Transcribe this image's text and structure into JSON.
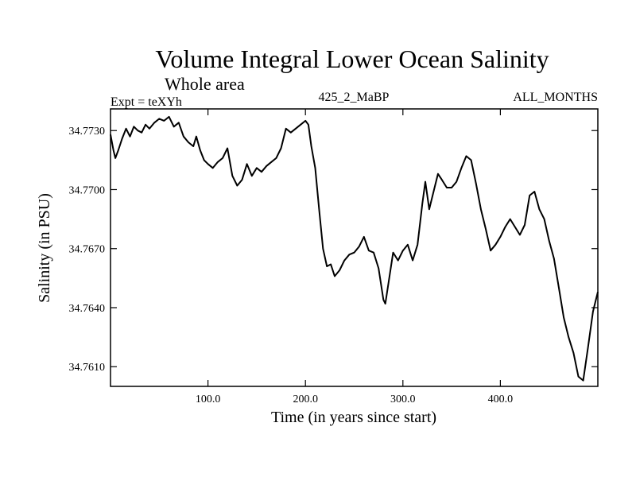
{
  "chart_data": {
    "type": "line",
    "title": "Volume Integral Lower Ocean Salinity",
    "subtitle": "Whole area",
    "annotations": {
      "left": "Expt = teXYh",
      "center": "425_2_MaBP",
      "right": "ALL_MONTHS"
    },
    "xlabel": "Time (in years since start)",
    "ylabel": "Salinity (in PSU)",
    "xlim": [
      0,
      500
    ],
    "ylim": [
      34.76,
      34.7741
    ],
    "x_ticks": [
      {
        "value": 100,
        "label": "100.0"
      },
      {
        "value": 200,
        "label": "200.0"
      },
      {
        "value": 300,
        "label": "300.0"
      },
      {
        "value": 400,
        "label": "400.0"
      }
    ],
    "y_ticks": [
      {
        "value": 34.761,
        "label": "34.7610"
      },
      {
        "value": 34.764,
        "label": "34.7640"
      },
      {
        "value": 34.767,
        "label": "34.7670"
      },
      {
        "value": 34.77,
        "label": "34.7700"
      },
      {
        "value": 34.773,
        "label": "34.7730"
      }
    ],
    "grid": false,
    "series": [
      {
        "color": "#000000",
        "x": [
          0,
          3,
          5,
          8,
          12,
          16,
          20,
          24,
          28,
          32,
          36,
          40,
          45,
          50,
          55,
          60,
          65,
          70,
          75,
          80,
          85,
          88,
          92,
          96,
          100,
          105,
          110,
          115,
          120,
          125,
          130,
          135,
          140,
          145,
          150,
          155,
          160,
          165,
          170,
          175,
          180,
          185,
          190,
          195,
          200,
          203,
          206,
          210,
          214,
          218,
          222,
          226,
          230,
          235,
          240,
          245,
          250,
          255,
          260,
          265,
          270,
          275,
          280,
          282,
          286,
          290,
          295,
          300,
          305,
          310,
          315,
          320,
          323,
          327,
          332,
          336,
          340,
          345,
          350,
          355,
          360,
          365,
          370,
          375,
          380,
          385,
          390,
          395,
          400,
          405,
          410,
          415,
          420,
          425,
          430,
          435,
          440,
          445,
          450,
          455,
          460,
          465,
          470,
          475,
          480,
          485,
          490,
          495,
          500
        ],
        "y": [
          34.7728,
          34.772,
          34.7716,
          34.772,
          34.7726,
          34.7731,
          34.7727,
          34.7732,
          34.773,
          34.7729,
          34.7733,
          34.7731,
          34.7734,
          34.7736,
          34.7735,
          34.7737,
          34.7732,
          34.7734,
          34.7727,
          34.7724,
          34.7722,
          34.7727,
          34.772,
          34.7715,
          34.7713,
          34.7711,
          34.7714,
          34.7716,
          34.7721,
          34.7707,
          34.7702,
          34.7705,
          34.7713,
          34.7707,
          34.7711,
          34.7709,
          34.7712,
          34.7714,
          34.7716,
          34.7721,
          34.7731,
          34.7729,
          34.7731,
          34.7733,
          34.7735,
          34.7733,
          34.7722,
          34.7711,
          34.769,
          34.767,
          34.7661,
          34.7662,
          34.7656,
          34.7659,
          34.7664,
          34.7667,
          34.7668,
          34.7671,
          34.7676,
          34.7669,
          34.7668,
          34.766,
          34.7644,
          34.7642,
          34.7655,
          34.7668,
          34.7664,
          34.7669,
          34.7672,
          34.7664,
          34.7672,
          34.7693,
          34.7704,
          34.769,
          34.77,
          34.7708,
          34.7705,
          34.7701,
          34.7701,
          34.7704,
          34.7711,
          34.7717,
          34.7715,
          34.7703,
          34.769,
          34.768,
          34.7669,
          34.7672,
          34.7676,
          34.7681,
          34.7685,
          34.7681,
          34.7677,
          34.7682,
          34.7697,
          34.7699,
          34.769,
          34.7685,
          34.7674,
          34.7665,
          34.765,
          34.7635,
          34.7625,
          34.7617,
          34.7605,
          34.7603,
          34.762,
          34.7638,
          34.7648
        ]
      }
    ]
  }
}
